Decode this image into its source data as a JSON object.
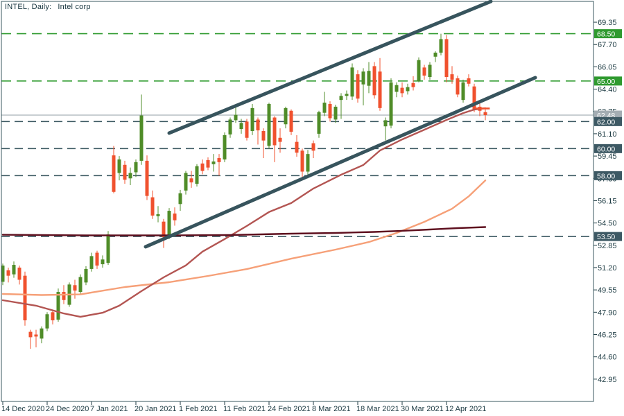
{
  "title": {
    "symbol_label": "INTEL, Daily:",
    "description": "Intel corp"
  },
  "colors": {
    "up": "#4f8c28",
    "down": "#f0512e",
    "slate": "#3a5760",
    "trend": "#37545d",
    "levelGreen": "#2f9a2f",
    "grayLine": "#909ca4",
    "salmon": "#f6a078",
    "crimson": "#b35552",
    "maroon": "#5e0f1e",
    "badgeGreen": "#2f9a2f",
    "badgeSlate": "#3d5964",
    "badgeGray": "#a4adb3",
    "text": "#1c3a42",
    "border": "#3a575f",
    "background": "#ffffff"
  },
  "chart_data": {
    "type": "candlestick",
    "symbol": "INTEL",
    "timeframe": "Daily",
    "description": "Intel corp",
    "current_price": 62.48,
    "y_axis": {
      "min": 42.95,
      "max": 69.35,
      "tick_step": 1.65,
      "labels": [
        "69.35",
        "67.70",
        "66.05",
        "64.40",
        "62.75",
        "61.10",
        "59.45",
        "57.80",
        "56.15",
        "54.50",
        "52.85",
        "51.20",
        "49.55",
        "47.90",
        "46.25",
        "44.60",
        "42.95"
      ]
    },
    "x_axis": {
      "ticks": [
        {
          "index": 0,
          "label": "14 Dec 2020"
        },
        {
          "index": 8,
          "label": "24 Dec 2020"
        },
        {
          "index": 16,
          "label": "7 Jan 2021"
        },
        {
          "index": 24,
          "label": "20 Jan 2021"
        },
        {
          "index": 32,
          "label": "1 Feb 2021"
        },
        {
          "index": 40,
          "label": "11 Feb 2021"
        },
        {
          "index": 48,
          "label": "24 Feb 2021"
        },
        {
          "index": 56,
          "label": "8 Mar 2021"
        },
        {
          "index": 64,
          "label": "18 Mar 2021"
        },
        {
          "index": 72,
          "label": "30 Mar 2021"
        },
        {
          "index": 80,
          "label": "12 Apr 2021"
        }
      ]
    },
    "levels": [
      {
        "label": "68.50",
        "price": 68.5,
        "line": "dashed",
        "color_key": "levelGreen",
        "badge": "badgeGreen"
      },
      {
        "label": "65.00",
        "price": 65.0,
        "line": "dashed",
        "color_key": "levelGreen",
        "badge": "badgeGreen"
      },
      {
        "label": "62.48",
        "price": 62.48,
        "line": "solid",
        "color_key": "grayLine",
        "badge": "badgeGray",
        "current": true
      },
      {
        "label": "62.00",
        "price": 62.0,
        "line": "dashed",
        "color_key": "slate",
        "badge": "badgeSlate"
      },
      {
        "label": "60.00",
        "price": 60.0,
        "line": "dashed",
        "color_key": "slate",
        "badge": "badgeSlate"
      },
      {
        "label": "58.00",
        "price": 58.0,
        "line": "dashed",
        "color_key": "slate",
        "badge": "badgeSlate"
      },
      {
        "label": "53.50",
        "price": 53.5,
        "line": "dashed",
        "color_key": "slate",
        "badge": "badgeSlate"
      }
    ],
    "trendlines": [
      {
        "name": "upper-channel",
        "points": [
          [
            30,
            61.15
          ],
          [
            88,
            70.89
          ]
        ]
      },
      {
        "name": "lower-channel",
        "points": [
          [
            25.75,
            52.74
          ],
          [
            96,
            65.25
          ]
        ]
      }
    ],
    "moving_averages": [
      {
        "name": "slow-salmon",
        "color_key": "salmon",
        "points": [
          [
            0,
            49.25
          ],
          [
            7,
            49.17
          ],
          [
            14,
            49.22
          ],
          [
            22,
            49.76
          ],
          [
            30,
            50.12
          ],
          [
            37,
            50.58
          ],
          [
            44,
            51.09
          ],
          [
            52,
            51.86
          ],
          [
            60,
            52.53
          ],
          [
            66,
            53.09
          ],
          [
            71,
            53.76
          ],
          [
            76,
            54.58
          ],
          [
            81,
            55.55
          ],
          [
            84,
            56.47
          ],
          [
            87,
            57.65
          ]
        ]
      },
      {
        "name": "medium-crimson",
        "color_key": "crimson",
        "points": [
          [
            0,
            48.79
          ],
          [
            6,
            48.38
          ],
          [
            11,
            47.81
          ],
          [
            14,
            47.56
          ],
          [
            18,
            47.86
          ],
          [
            21,
            48.38
          ],
          [
            25,
            49.46
          ],
          [
            29,
            50.48
          ],
          [
            33,
            51.36
          ],
          [
            36,
            52.38
          ],
          [
            40,
            53.31
          ],
          [
            44,
            54.28
          ],
          [
            48,
            55.31
          ],
          [
            52,
            55.97
          ],
          [
            56,
            57.05
          ],
          [
            61,
            58.07
          ],
          [
            65,
            58.79
          ],
          [
            68,
            59.86
          ],
          [
            72,
            60.68
          ],
          [
            76,
            61.4
          ],
          [
            80,
            62.12
          ],
          [
            83,
            62.63
          ],
          [
            85,
            62.89
          ],
          [
            87,
            62.99
          ]
        ]
      },
      {
        "name": "long-maroon",
        "color_key": "maroon",
        "points": [
          [
            0,
            53.63
          ],
          [
            15,
            53.58
          ],
          [
            30,
            53.58
          ],
          [
            41,
            53.61
          ],
          [
            52,
            53.71
          ],
          [
            60,
            53.76
          ],
          [
            67,
            53.84
          ],
          [
            72,
            53.92
          ],
          [
            77,
            54.02
          ],
          [
            82,
            54.12
          ],
          [
            87,
            54.2
          ]
        ]
      }
    ],
    "open_price_dash": {
      "price": 62.97,
      "start_index": 85.2,
      "end_index": 87.8
    },
    "candles": [
      {
        "d": "14 Dec 2020",
        "o": 50.15,
        "h": 51.5,
        "l": 49.9,
        "c": 51.35
      },
      {
        "d": "15 Dec 2020",
        "o": 51.0,
        "h": 51.2,
        "l": 50.1,
        "c": 50.6
      },
      {
        "d": "16 Dec 2020",
        "o": 50.7,
        "h": 51.65,
        "l": 50.45,
        "c": 51.4
      },
      {
        "d": "17 Dec 2020",
        "o": 51.2,
        "h": 51.35,
        "l": 49.95,
        "c": 50.3
      },
      {
        "d": "18 Dec 2020",
        "o": 50.6,
        "h": 50.9,
        "l": 46.9,
        "c": 47.3
      },
      {
        "d": "21 Dec 2020",
        "o": 46.45,
        "h": 46.6,
        "l": 45.2,
        "c": 46.05
      },
      {
        "d": "22 Dec 2020",
        "o": 46.25,
        "h": 46.6,
        "l": 45.3,
        "c": 46.1
      },
      {
        "d": "23 Dec 2020",
        "o": 45.95,
        "h": 46.85,
        "l": 45.6,
        "c": 46.7
      },
      {
        "d": "24 Dec 2020",
        "o": 46.7,
        "h": 47.9,
        "l": 46.5,
        "c": 47.75
      },
      {
        "d": "28 Dec 2020",
        "o": 47.9,
        "h": 48.1,
        "l": 47.0,
        "c": 47.3
      },
      {
        "d": "29 Dec 2020",
        "o": 47.35,
        "h": 49.65,
        "l": 47.2,
        "c": 49.4
      },
      {
        "d": "30 Dec 2020",
        "o": 49.4,
        "h": 49.9,
        "l": 48.5,
        "c": 48.8
      },
      {
        "d": "31 Dec 2020",
        "o": 48.45,
        "h": 50.1,
        "l": 48.3,
        "c": 49.95
      },
      {
        "d": "4 Jan 2021",
        "o": 49.9,
        "h": 50.3,
        "l": 48.9,
        "c": 49.5
      },
      {
        "d": "5 Jan 2021",
        "o": 49.4,
        "h": 50.7,
        "l": 49.2,
        "c": 50.5
      },
      {
        "d": "6 Jan 2021",
        "o": 50.1,
        "h": 51.3,
        "l": 49.9,
        "c": 51.1
      },
      {
        "d": "7 Jan 2021",
        "o": 51.1,
        "h": 52.3,
        "l": 50.9,
        "c": 52.05
      },
      {
        "d": "8 Jan 2021",
        "o": 52.3,
        "h": 52.45,
        "l": 51.1,
        "c": 51.35
      },
      {
        "d": "11 Jan 2021",
        "o": 51.45,
        "h": 52.1,
        "l": 51.2,
        "c": 51.8
      },
      {
        "d": "12 Jan 2021",
        "o": 51.55,
        "h": 53.9,
        "l": 51.4,
        "c": 53.65
      },
      {
        "d": "13 Jan 2021",
        "o": 59.5,
        "h": 60.2,
        "l": 56.7,
        "c": 56.8
      },
      {
        "d": "14 Jan 2021",
        "o": 58.2,
        "h": 59.45,
        "l": 57.65,
        "c": 59.2
      },
      {
        "d": "15 Jan 2021",
        "o": 58.8,
        "h": 59.1,
        "l": 57.4,
        "c": 57.7
      },
      {
        "d": "19 Jan 2021",
        "o": 57.8,
        "h": 58.6,
        "l": 57.3,
        "c": 58.2
      },
      {
        "d": "20 Jan 2021",
        "o": 58.25,
        "h": 59.2,
        "l": 57.9,
        "c": 59.0
      },
      {
        "d": "21 Jan 2021",
        "o": 59.1,
        "h": 64.0,
        "l": 58.8,
        "c": 62.45
      },
      {
        "d": "22 Jan 2021",
        "o": 59.1,
        "h": 59.5,
        "l": 56.2,
        "c": 56.5
      },
      {
        "d": "25 Jan 2021",
        "o": 56.4,
        "h": 56.9,
        "l": 54.8,
        "c": 55.05
      },
      {
        "d": "26 Jan 2021",
        "o": 55.0,
        "h": 55.75,
        "l": 54.55,
        "c": 55.15
      },
      {
        "d": "27 Jan 2021",
        "o": 54.6,
        "h": 54.8,
        "l": 52.65,
        "c": 53.45
      },
      {
        "d": "28 Jan 2021",
        "o": 53.6,
        "h": 55.6,
        "l": 53.3,
        "c": 55.4
      },
      {
        "d": "29 Jan 2021",
        "o": 55.2,
        "h": 55.65,
        "l": 54.3,
        "c": 54.7
      },
      {
        "d": "1 Feb 2021",
        "o": 55.9,
        "h": 56.95,
        "l": 55.4,
        "c": 56.7
      },
      {
        "d": "2 Feb 2021",
        "o": 56.9,
        "h": 58.35,
        "l": 56.6,
        "c": 58.2
      },
      {
        "d": "3 Feb 2021",
        "o": 57.8,
        "h": 58.35,
        "l": 57.1,
        "c": 57.5
      },
      {
        "d": "4 Feb 2021",
        "o": 57.4,
        "h": 58.85,
        "l": 57.2,
        "c": 58.7
      },
      {
        "d": "5 Feb 2021",
        "o": 58.9,
        "h": 59.2,
        "l": 58.1,
        "c": 58.35
      },
      {
        "d": "8 Feb 2021",
        "o": 59.15,
        "h": 59.35,
        "l": 58.4,
        "c": 58.6
      },
      {
        "d": "9 Feb 2021",
        "o": 58.85,
        "h": 59.6,
        "l": 58.3,
        "c": 59.05
      },
      {
        "d": "10 Feb 2021",
        "o": 59.3,
        "h": 59.6,
        "l": 58.0,
        "c": 59.0
      },
      {
        "d": "11 Feb 2021",
        "o": 59.2,
        "h": 61.2,
        "l": 59.0,
        "c": 61.0
      },
      {
        "d": "12 Feb 2021",
        "o": 61.05,
        "h": 62.3,
        "l": 60.8,
        "c": 62.15
      },
      {
        "d": "16 Feb 2021",
        "o": 62.1,
        "h": 63.1,
        "l": 61.9,
        "c": 62.5
      },
      {
        "d": "17 Feb 2021",
        "o": 61.45,
        "h": 62.2,
        "l": 61.1,
        "c": 61.9
      },
      {
        "d": "18 Feb 2021",
        "o": 62.0,
        "h": 62.2,
        "l": 60.6,
        "c": 60.8
      },
      {
        "d": "19 Feb 2021",
        "o": 61.3,
        "h": 63.3,
        "l": 61.0,
        "c": 63.0
      },
      {
        "d": "22 Feb 2021",
        "o": 62.15,
        "h": 62.3,
        "l": 60.3,
        "c": 61.35
      },
      {
        "d": "23 Feb 2021",
        "o": 61.3,
        "h": 61.5,
        "l": 59.3,
        "c": 60.6
      },
      {
        "d": "24 Feb 2021",
        "o": 60.2,
        "h": 63.4,
        "l": 60.0,
        "c": 63.3
      },
      {
        "d": "25 Feb 2021",
        "o": 62.3,
        "h": 62.4,
        "l": 59.0,
        "c": 60.25
      },
      {
        "d": "26 Feb 2021",
        "o": 60.8,
        "h": 61.5,
        "l": 59.7,
        "c": 60.5
      },
      {
        "d": "1 Mar 2021",
        "o": 61.8,
        "h": 63.1,
        "l": 61.5,
        "c": 63.0
      },
      {
        "d": "2 Mar 2021",
        "o": 62.8,
        "h": 62.9,
        "l": 61.0,
        "c": 61.25
      },
      {
        "d": "3 Mar 2021",
        "o": 60.5,
        "h": 61.0,
        "l": 59.4,
        "c": 59.7
      },
      {
        "d": "4 Mar 2021",
        "o": 59.85,
        "h": 60.0,
        "l": 57.9,
        "c": 58.3
      },
      {
        "d": "5 Mar 2021",
        "o": 58.3,
        "h": 59.9,
        "l": 57.8,
        "c": 59.6
      },
      {
        "d": "8 Mar 2021",
        "o": 60.4,
        "h": 60.6,
        "l": 59.3,
        "c": 59.85
      },
      {
        "d": "9 Mar 2021",
        "o": 61.1,
        "h": 62.8,
        "l": 60.8,
        "c": 62.7
      },
      {
        "d": "10 Mar 2021",
        "o": 62.65,
        "h": 64.2,
        "l": 62.4,
        "c": 63.4
      },
      {
        "d": "11 Mar 2021",
        "o": 63.3,
        "h": 63.5,
        "l": 62.0,
        "c": 62.25
      },
      {
        "d": "12 Mar 2021",
        "o": 62.15,
        "h": 63.25,
        "l": 61.9,
        "c": 63.1
      },
      {
        "d": "15 Mar 2021",
        "o": 63.6,
        "h": 64.1,
        "l": 62.2,
        "c": 63.9
      },
      {
        "d": "16 Mar 2021",
        "o": 63.9,
        "h": 64.3,
        "l": 63.6,
        "c": 64.05
      },
      {
        "d": "17 Mar 2021",
        "o": 63.85,
        "h": 66.3,
        "l": 63.6,
        "c": 66.0
      },
      {
        "d": "18 Mar 2021",
        "o": 65.5,
        "h": 65.8,
        "l": 63.4,
        "c": 63.7
      },
      {
        "d": "19 Mar 2021",
        "o": 64.75,
        "h": 65.95,
        "l": 63.2,
        "c": 65.7
      },
      {
        "d": "22 Mar 2021",
        "o": 64.65,
        "h": 66.4,
        "l": 64.1,
        "c": 65.75
      },
      {
        "d": "23 Mar 2021",
        "o": 66.1,
        "h": 66.4,
        "l": 63.7,
        "c": 63.95
      },
      {
        "d": "24 Mar 2021",
        "o": 65.7,
        "h": 66.7,
        "l": 62.8,
        "c": 63.0
      },
      {
        "d": "25 Mar 2021",
        "o": 61.65,
        "h": 62.3,
        "l": 60.6,
        "c": 62.1
      },
      {
        "d": "26 Mar 2021",
        "o": 61.7,
        "h": 65.2,
        "l": 61.5,
        "c": 64.9
      },
      {
        "d": "29 Mar 2021",
        "o": 64.2,
        "h": 64.9,
        "l": 63.8,
        "c": 64.7
      },
      {
        "d": "30 Mar 2021",
        "o": 64.5,
        "h": 64.9,
        "l": 63.8,
        "c": 64.1
      },
      {
        "d": "31 Mar 2021",
        "o": 64.25,
        "h": 64.8,
        "l": 64.0,
        "c": 64.55
      },
      {
        "d": "1 Apr 2021",
        "o": 64.85,
        "h": 65.35,
        "l": 64.3,
        "c": 64.55
      },
      {
        "d": "5 Apr 2021",
        "o": 65.0,
        "h": 66.75,
        "l": 64.9,
        "c": 66.55
      },
      {
        "d": "6 Apr 2021",
        "o": 66.0,
        "h": 66.2,
        "l": 65.1,
        "c": 65.4
      },
      {
        "d": "7 Apr 2021",
        "o": 65.3,
        "h": 66.4,
        "l": 65.1,
        "c": 66.2
      },
      {
        "d": "8 Apr 2021",
        "o": 66.8,
        "h": 67.2,
        "l": 66.4,
        "c": 67.1
      },
      {
        "d": "9 Apr 2021",
        "o": 67.1,
        "h": 68.5,
        "l": 66.9,
        "c": 68.1
      },
      {
        "d": "12 Apr 2021",
        "o": 68.1,
        "h": 68.4,
        "l": 64.9,
        "c": 65.3
      },
      {
        "d": "13 Apr 2021",
        "o": 65.5,
        "h": 66.1,
        "l": 64.8,
        "c": 65.1
      },
      {
        "d": "14 Apr 2021",
        "o": 65.2,
        "h": 65.4,
        "l": 63.8,
        "c": 64.0
      },
      {
        "d": "15 Apr 2021",
        "o": 63.6,
        "h": 65.1,
        "l": 63.4,
        "c": 64.9
      },
      {
        "d": "16 Apr 2021",
        "o": 65.2,
        "h": 65.5,
        "l": 64.6,
        "c": 64.8
      },
      {
        "d": "19 Apr 2021",
        "o": 64.6,
        "h": 64.8,
        "l": 62.7,
        "c": 62.9
      },
      {
        "d": "20 Apr 2021",
        "o": 63.1,
        "h": 63.5,
        "l": 62.4,
        "c": 62.8
      },
      {
        "d": "21 Apr 2021",
        "o": 62.7,
        "h": 62.9,
        "l": 62.1,
        "c": 62.48
      }
    ]
  }
}
